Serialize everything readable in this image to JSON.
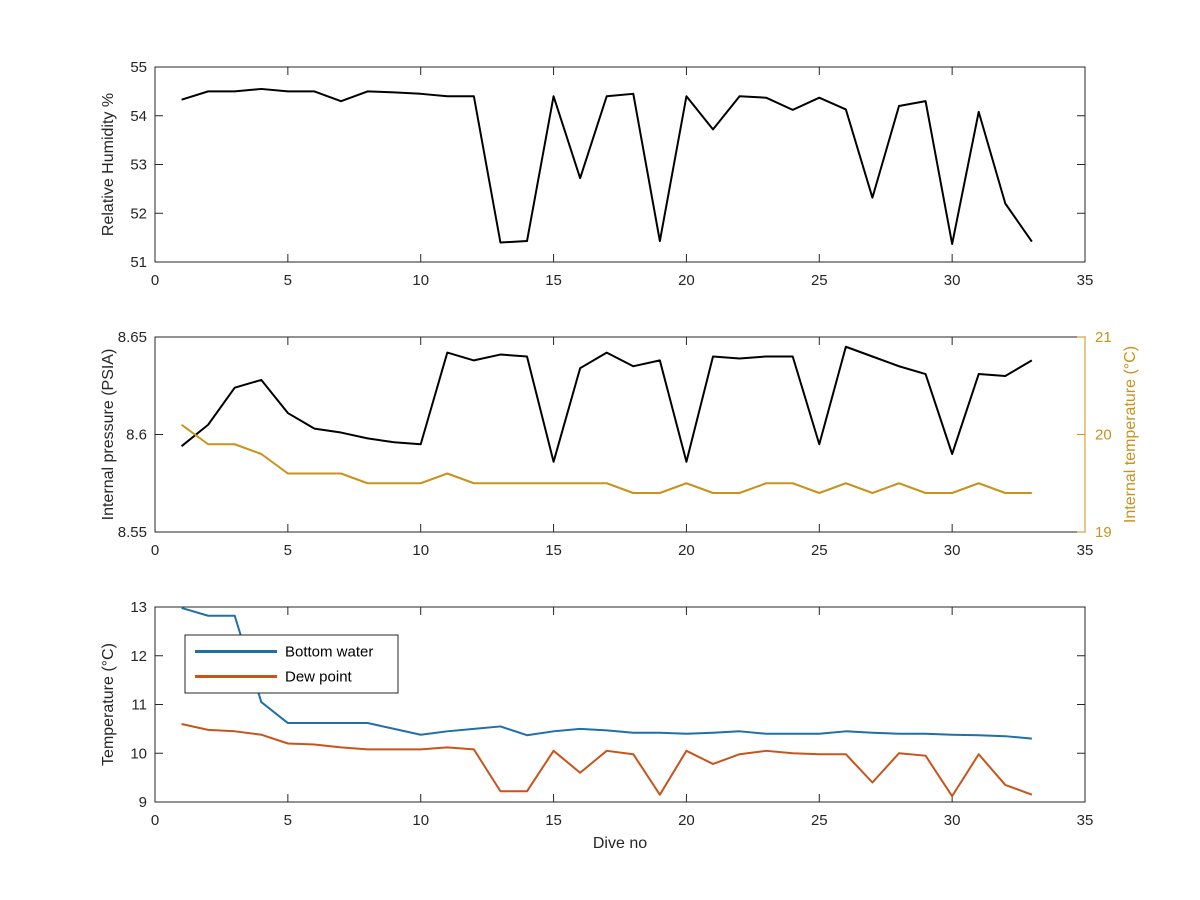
{
  "chart_data": [
    {
      "type": "line",
      "xlabel": "",
      "ylabel": "Relative Humidity %",
      "xlim": [
        0,
        35
      ],
      "ylim": [
        51,
        55
      ],
      "xticks": [
        "0",
        "5",
        "10",
        "15",
        "20",
        "25",
        "30",
        "35"
      ],
      "yticks": [
        "51",
        "52",
        "53",
        "54",
        "55"
      ],
      "grid": false,
      "series": [
        {
          "color": "#000000",
          "x": [
            1,
            2,
            3,
            4,
            5,
            6,
            7,
            8,
            9,
            10,
            11,
            12,
            13,
            14,
            15,
            16,
            17,
            18,
            19,
            20,
            21,
            22,
            23,
            24,
            25,
            26,
            27,
            28,
            29,
            30,
            31,
            32,
            33
          ],
          "y": [
            54.33,
            54.5,
            54.5,
            54.55,
            54.5,
            54.5,
            54.3,
            54.5,
            54.48,
            54.45,
            54.4,
            54.4,
            51.4,
            51.43,
            54.4,
            52.72,
            54.4,
            54.45,
            51.43,
            54.4,
            53.72,
            54.4,
            54.37,
            54.12,
            54.37,
            54.13,
            52.32,
            54.2,
            54.3,
            51.37,
            54.08,
            52.2,
            51.42
          ]
        }
      ]
    },
    {
      "type": "line",
      "xlabel": "",
      "ylabel": "Internal pressure (PSIA)",
      "y2label": "Internal temperature (°C)",
      "xlim": [
        0,
        35
      ],
      "ylim": [
        8.55,
        8.65
      ],
      "y2lim": [
        19,
        21
      ],
      "xticks": [
        "0",
        "5",
        "10",
        "15",
        "20",
        "25",
        "30",
        "35"
      ],
      "yticks": [
        "8.55",
        "8.6",
        "8.65"
      ],
      "y2ticks": [
        "19",
        "20",
        "21"
      ],
      "grid": false,
      "series": [
        {
          "axis": "left",
          "color": "#000000",
          "x": [
            1,
            2,
            3,
            4,
            5,
            6,
            7,
            8,
            9,
            10,
            11,
            12,
            13,
            14,
            15,
            16,
            17,
            18,
            19,
            20,
            21,
            22,
            23,
            24,
            25,
            26,
            27,
            28,
            29,
            30,
            31,
            32,
            33
          ],
          "y": [
            8.594,
            8.605,
            8.624,
            8.628,
            8.611,
            8.603,
            8.601,
            8.598,
            8.596,
            8.595,
            8.642,
            8.638,
            8.641,
            8.64,
            8.586,
            8.634,
            8.642,
            8.635,
            8.638,
            8.586,
            8.64,
            8.639,
            8.64,
            8.64,
            8.595,
            8.645,
            8.64,
            8.635,
            8.631,
            8.59,
            8.631,
            8.63,
            8.638
          ]
        },
        {
          "axis": "right",
          "color": "#c8921c",
          "x": [
            1,
            2,
            3,
            4,
            5,
            6,
            7,
            8,
            9,
            10,
            11,
            12,
            13,
            14,
            15,
            16,
            17,
            18,
            19,
            20,
            21,
            22,
            23,
            24,
            25,
            26,
            27,
            28,
            29,
            30,
            31,
            32,
            33
          ],
          "y": [
            20.1,
            19.9,
            19.9,
            19.8,
            19.6,
            19.6,
            19.6,
            19.5,
            19.5,
            19.5,
            19.6,
            19.5,
            19.5,
            19.5,
            19.5,
            19.5,
            19.5,
            19.4,
            19.4,
            19.5,
            19.4,
            19.4,
            19.5,
            19.5,
            19.4,
            19.5,
            19.4,
            19.5,
            19.4,
            19.4,
            19.5,
            19.4,
            19.4
          ]
        }
      ]
    },
    {
      "type": "line",
      "xlabel": "Dive no",
      "ylabel": "Temperature (°C)",
      "xlim": [
        0,
        35
      ],
      "ylim": [
        9,
        13
      ],
      "xticks": [
        "0",
        "5",
        "10",
        "15",
        "20",
        "25",
        "30",
        "35"
      ],
      "yticks": [
        "9",
        "10",
        "11",
        "12",
        "13"
      ],
      "grid": false,
      "legend": "top-left",
      "series": [
        {
          "name": "Bottom water",
          "color": "#1f6fa8",
          "x": [
            1,
            2,
            3,
            4,
            5,
            6,
            7,
            8,
            9,
            10,
            11,
            12,
            13,
            14,
            15,
            16,
            17,
            18,
            19,
            20,
            21,
            22,
            23,
            24,
            25,
            26,
            27,
            28,
            29,
            30,
            31,
            32,
            33
          ],
          "y": [
            12.98,
            12.82,
            12.82,
            11.05,
            10.62,
            10.62,
            10.62,
            10.62,
            10.5,
            10.38,
            10.45,
            10.5,
            10.55,
            10.37,
            10.45,
            10.5,
            10.47,
            10.42,
            10.42,
            10.4,
            10.42,
            10.45,
            10.4,
            10.4,
            10.4,
            10.45,
            10.42,
            10.4,
            10.4,
            10.38,
            10.37,
            10.35,
            10.3
          ]
        },
        {
          "name": "Dew point",
          "color": "#c8541c",
          "x": [
            1,
            2,
            3,
            4,
            5,
            6,
            7,
            8,
            9,
            10,
            11,
            12,
            13,
            14,
            15,
            16,
            17,
            18,
            19,
            20,
            21,
            22,
            23,
            24,
            25,
            26,
            27,
            28,
            29,
            30,
            31,
            32,
            33
          ],
          "y": [
            10.6,
            10.48,
            10.45,
            10.38,
            10.2,
            10.18,
            10.12,
            10.08,
            10.08,
            10.08,
            10.12,
            10.08,
            9.22,
            9.22,
            10.05,
            9.6,
            10.05,
            9.98,
            9.15,
            10.05,
            9.78,
            9.98,
            10.05,
            10.0,
            9.98,
            9.98,
            9.4,
            10.0,
            9.95,
            9.12,
            9.98,
            9.35,
            9.15
          ]
        }
      ]
    }
  ]
}
